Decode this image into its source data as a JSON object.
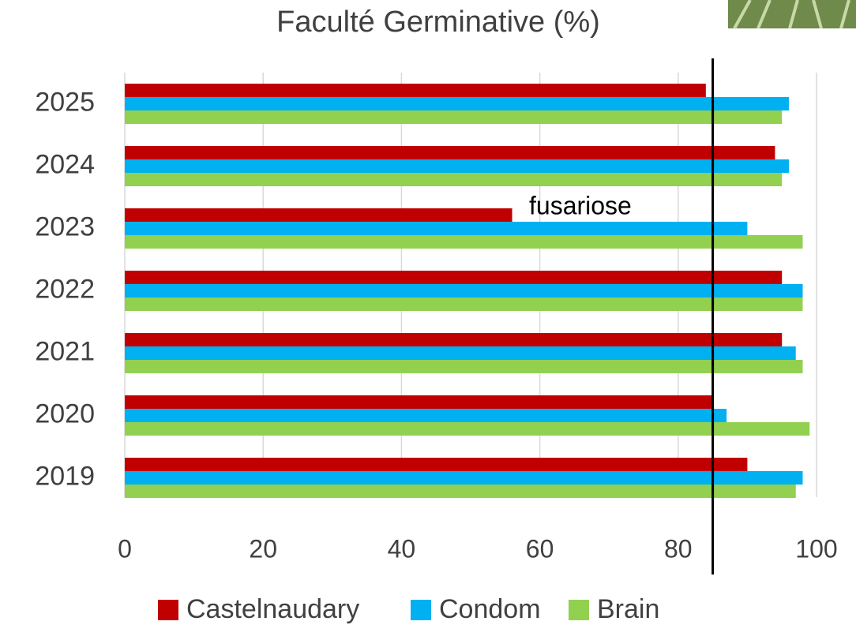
{
  "chart_data": {
    "type": "barh",
    "title": "Faculté Germinative (%)",
    "categories": [
      "2025",
      "2024",
      "2023",
      "2022",
      "2021",
      "2020",
      "2019"
    ],
    "series": [
      {
        "name": "Castelnaudary",
        "color": "#c00000",
        "values": [
          84,
          94,
          56,
          95,
          95,
          85,
          90
        ]
      },
      {
        "name": "Condom",
        "color": "#00b0f0",
        "values": [
          96,
          96,
          90,
          98,
          97,
          87,
          98
        ]
      },
      {
        "name": "Brain",
        "color": "#92d050",
        "values": [
          95,
          95,
          98,
          98,
          98,
          99,
          97
        ]
      }
    ],
    "xlim": [
      0,
      100
    ],
    "xticks": [
      0,
      20,
      40,
      60,
      80,
      100
    ],
    "grid": true,
    "reference_line": 85,
    "annotation": "fusariose",
    "legend": "bottom"
  }
}
